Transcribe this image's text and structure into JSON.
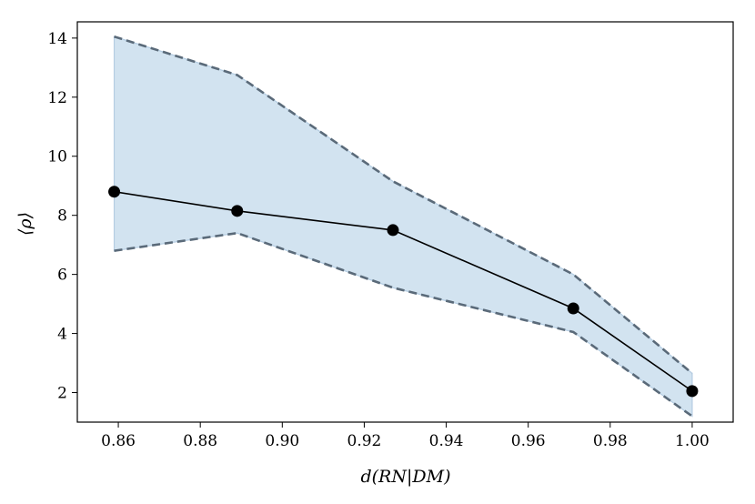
{
  "chart_data": {
    "type": "line",
    "title": "",
    "xlabel": "d(RN|DM)",
    "ylabel": "⟨ρ⟩",
    "xlim": [
      0.85,
      1.01
    ],
    "ylim": [
      1.0,
      14.55
    ],
    "xticks": [
      0.86,
      0.88,
      0.9,
      0.92,
      0.94,
      0.96,
      0.98,
      1.0
    ],
    "xtick_labels": [
      "0.86",
      "0.88",
      "0.90",
      "0.92",
      "0.94",
      "0.96",
      "0.98",
      "1.00"
    ],
    "yticks": [
      2,
      4,
      6,
      8,
      10,
      12,
      14
    ],
    "ytick_labels": [
      "2",
      "4",
      "6",
      "8",
      "10",
      "12",
      "14"
    ],
    "grid": false,
    "series": [
      {
        "x": [
          0.859,
          0.889,
          0.927,
          0.971,
          1.0
        ],
        "y": [
          8.8,
          8.15,
          7.5,
          4.85,
          2.05
        ],
        "color": "#000000",
        "marker": "circle"
      }
    ],
    "band": {
      "x": [
        0.859,
        0.889,
        0.927,
        0.971,
        1.0
      ],
      "upper": [
        14.05,
        12.75,
        9.15,
        6.0,
        2.65
      ],
      "lower": [
        6.8,
        7.4,
        5.55,
        4.05,
        1.2
      ],
      "fill_color": "#d2e3f0",
      "edge_color": "#5a6a79"
    }
  }
}
